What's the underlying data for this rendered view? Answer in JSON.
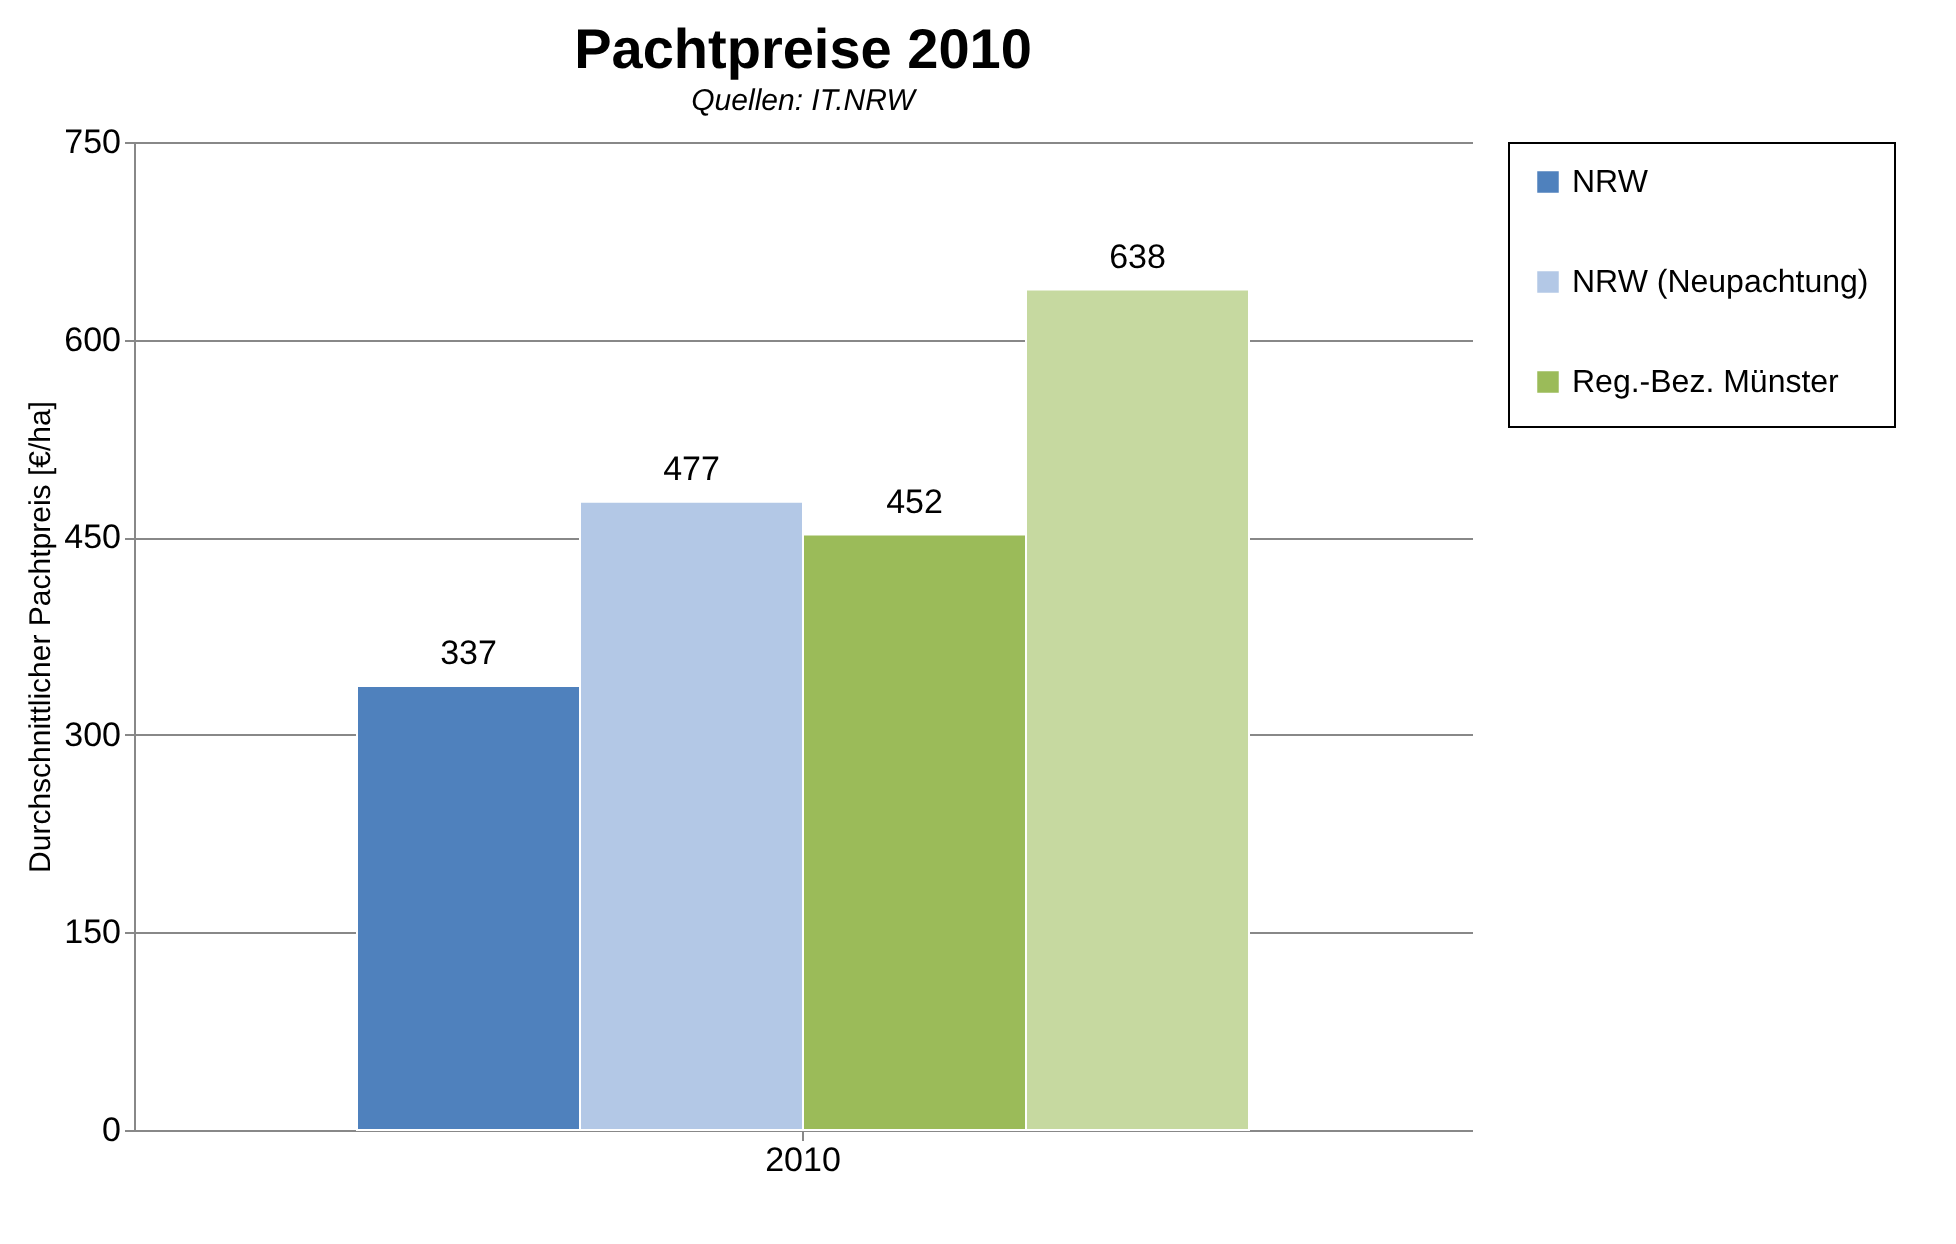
{
  "chart_data": {
    "type": "bar",
    "title": "Pachtpreise 2010",
    "subtitle": "Quellen: IT.NRW",
    "ylabel": "Durchschnittlicher Pachtpreis [€/ha]",
    "categories": [
      "2010"
    ],
    "series": [
      {
        "name": "NRW",
        "color": "#4f81bd",
        "values": [
          337
        ]
      },
      {
        "name": "NRW (Neupachtung)",
        "color": "#b3c8e6",
        "values": [
          477
        ]
      },
      {
        "name": "Reg.-Bez. Münster",
        "color": "#9bbb59",
        "values": [
          452
        ]
      },
      {
        "color": "#c6d9a0",
        "values": [
          638
        ]
      }
    ],
    "ylim": [
      0,
      750
    ],
    "yticks": [
      0,
      150,
      300,
      450,
      600,
      750
    ],
    "grid": "y",
    "legend": "right",
    "data_labels": true
  }
}
